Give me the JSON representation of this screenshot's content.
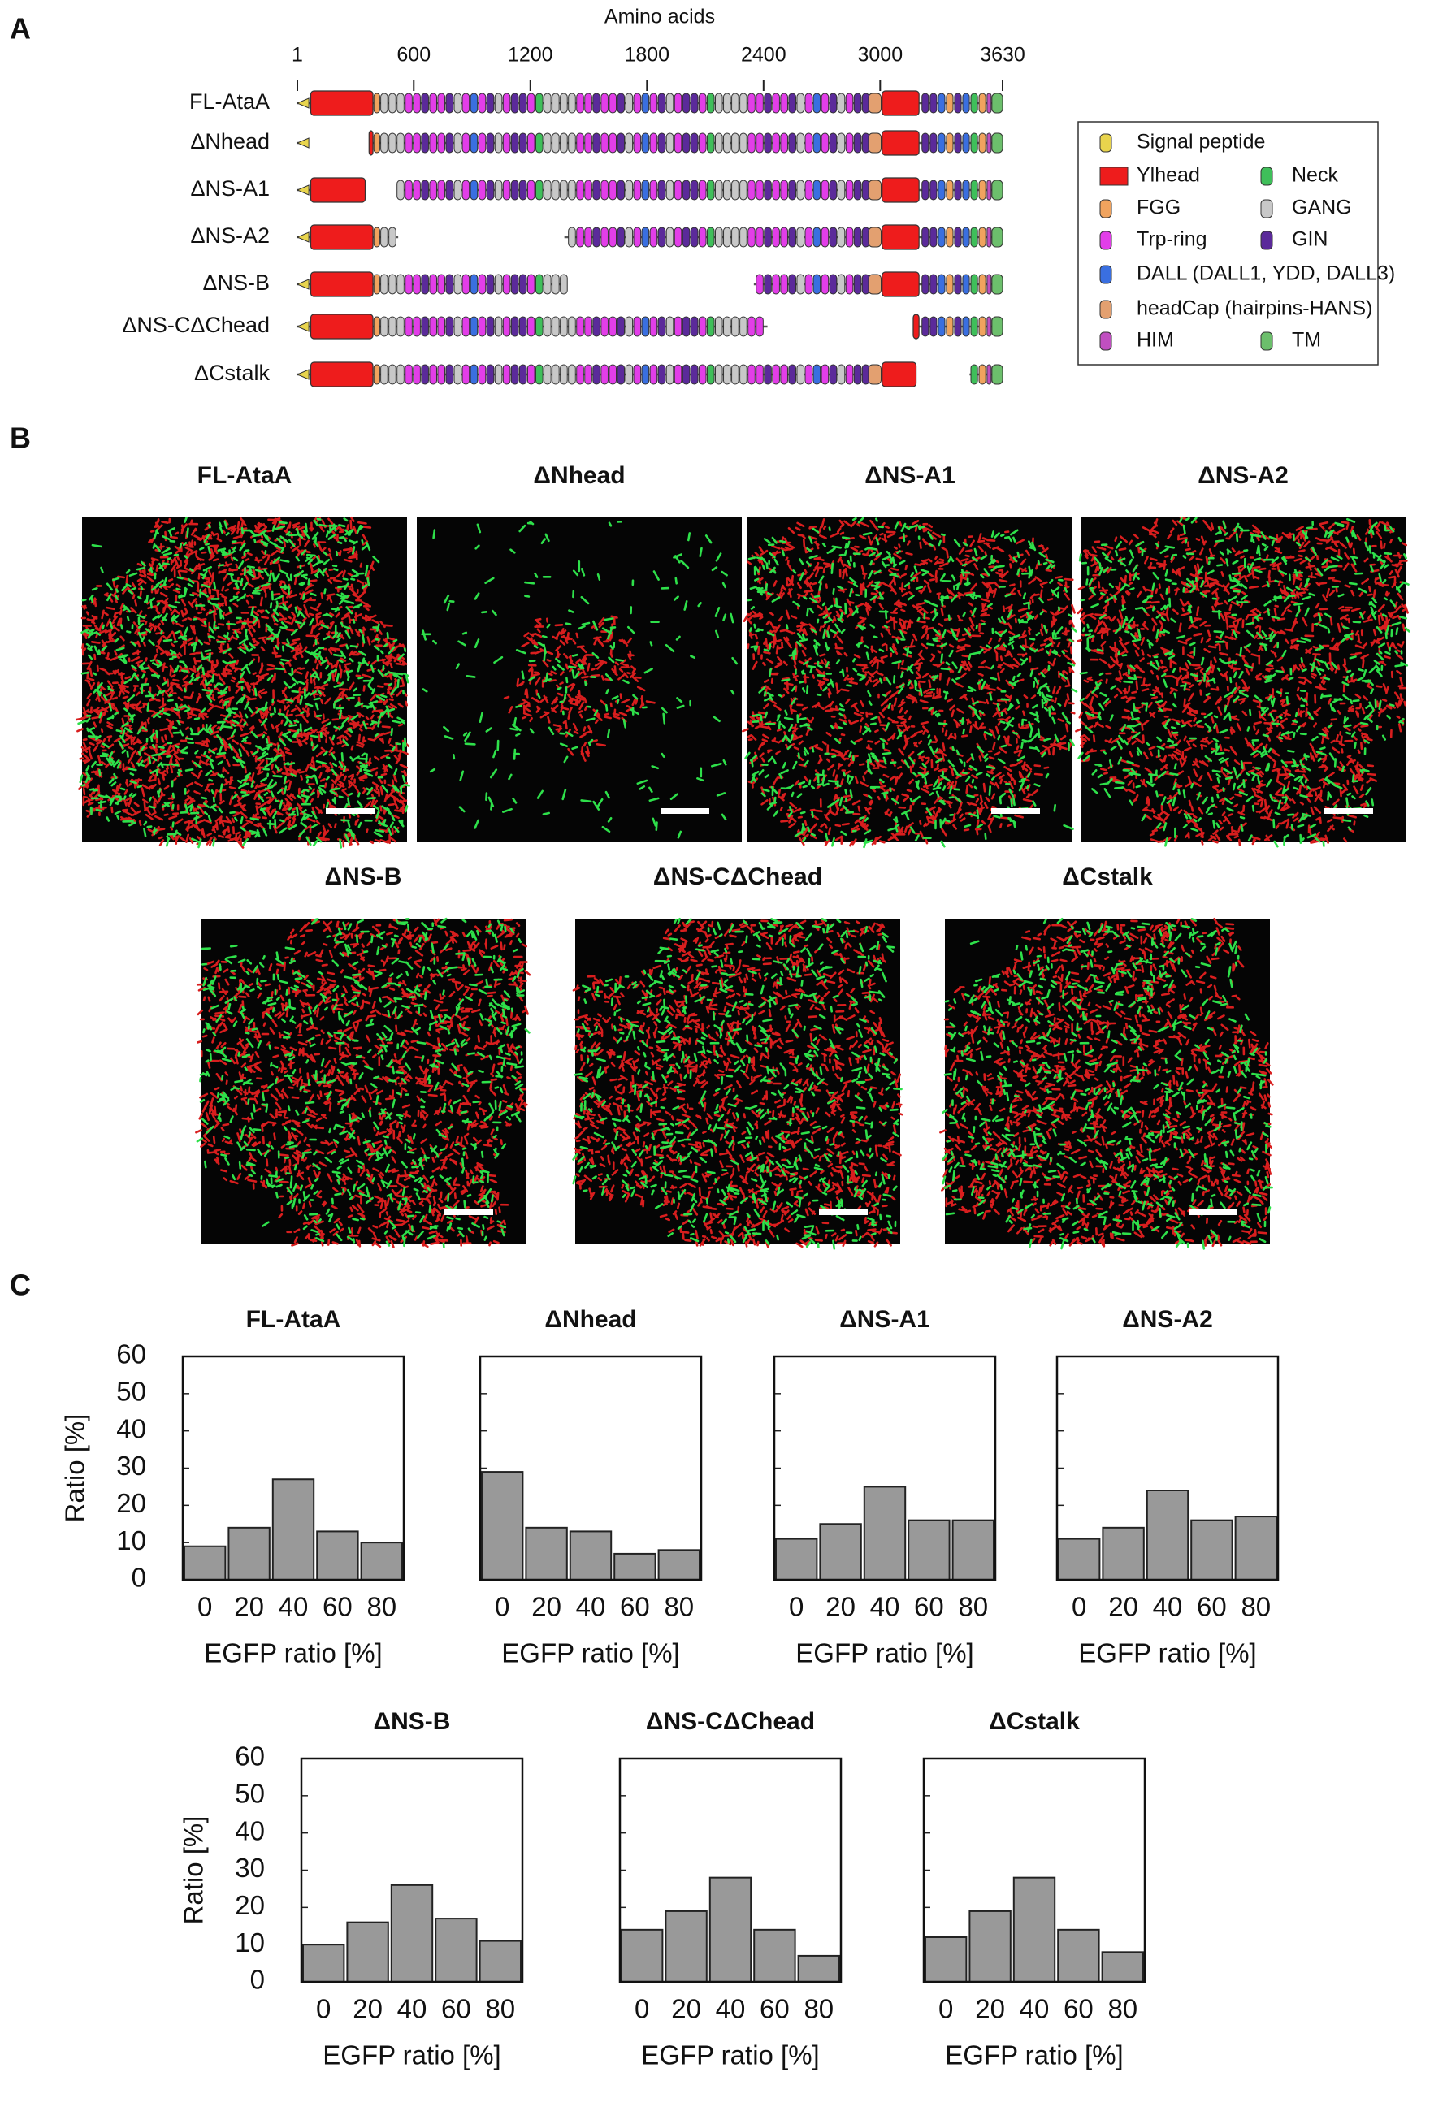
{
  "panel_labels": [
    "A",
    "B",
    "C"
  ],
  "domain_map": {
    "axis_title": "Amino acids",
    "xlim": [
      1,
      3630
    ],
    "xticks": [
      1,
      600,
      1200,
      1800,
      2400,
      3000,
      3630
    ],
    "constructs": [
      {
        "name": "FL-AtaA",
        "segments": [
          [
            1,
            3630
          ]
        ]
      },
      {
        "name": "ΔNhead",
        "segments": [
          [
            1,
            60
          ],
          [
            370,
            3630
          ]
        ]
      },
      {
        "name": "ΔNS-A1",
        "segments": [
          [
            1,
            350
          ],
          [
            520,
            3630
          ]
        ]
      },
      {
        "name": "ΔNS-A2",
        "segments": [
          [
            1,
            520
          ],
          [
            1375,
            3630
          ]
        ]
      },
      {
        "name": "ΔNS-B",
        "segments": [
          [
            1,
            1375
          ],
          [
            2350,
            3630
          ]
        ]
      },
      {
        "name": "ΔNS-CΔChead",
        "segments": [
          [
            1,
            2420
          ],
          [
            3170,
            3630
          ]
        ]
      },
      {
        "name": "ΔCstalk",
        "segments": [
          [
            1,
            3185
          ],
          [
            3460,
            3630
          ]
        ]
      }
    ],
    "legend": [
      {
        "label": "Signal peptide",
        "color": "#e8d44d"
      },
      {
        "label": "Ylhead",
        "color": "#ee1c1c"
      },
      {
        "label": "FGG",
        "color": "#f0a35e"
      },
      {
        "label": "Trp-ring",
        "color": "#e23ee8"
      },
      {
        "label": "DALL (DALL1, YDD, DALL3)",
        "color": "#3a6fe0"
      },
      {
        "label": "headCap (hairpins-HANS)",
        "color": "#e3a070"
      },
      {
        "label": "HIM",
        "color": "#c04fc0"
      },
      {
        "label": "Neck",
        "color": "#3fbf5a"
      },
      {
        "label": "GANG",
        "color": "#c8c8c8"
      },
      {
        "label": "GIN",
        "color": "#5b2a9a"
      },
      {
        "label": "TM",
        "color": "#6cbf6c"
      }
    ]
  },
  "images": [
    {
      "title": "FL-AtaA"
    },
    {
      "title": "ΔNhead"
    },
    {
      "title": "ΔNS-A1"
    },
    {
      "title": "ΔNS-A2"
    },
    {
      "title": "ΔNS-B"
    },
    {
      "title": "ΔNS-CΔChead"
    },
    {
      "title": "ΔCstalk"
    }
  ],
  "chart_data": [
    {
      "type": "bar",
      "title": "FL-AtaA",
      "categories": [
        "0",
        "20",
        "40",
        "60",
        "80"
      ],
      "values": [
        9,
        14,
        27,
        13,
        10
      ],
      "color": "#999999",
      "ylim": [
        0,
        60
      ],
      "yticks": [
        0,
        10,
        20,
        30,
        40,
        50,
        60
      ],
      "xlabel": "EGFP ratio [%]",
      "ylabel": "Ratio [%]"
    },
    {
      "type": "bar",
      "title": "ΔNhead",
      "categories": [
        "0",
        "20",
        "40",
        "60",
        "80"
      ],
      "values": [
        29,
        14,
        13,
        7,
        8
      ],
      "color": "#999999",
      "ylim": [
        0,
        60
      ],
      "yticks": [
        0,
        10,
        20,
        30,
        40,
        50,
        60
      ],
      "xlabel": "EGFP ratio [%]"
    },
    {
      "type": "bar",
      "title": "ΔNS-A1",
      "categories": [
        "0",
        "20",
        "40",
        "60",
        "80"
      ],
      "values": [
        11,
        15,
        25,
        16,
        16
      ],
      "color": "#999999",
      "ylim": [
        0,
        60
      ],
      "yticks": [
        0,
        10,
        20,
        30,
        40,
        50,
        60
      ],
      "xlabel": "EGFP ratio [%]"
    },
    {
      "type": "bar",
      "title": "ΔNS-A2",
      "categories": [
        "0",
        "20",
        "40",
        "60",
        "80"
      ],
      "values": [
        11,
        14,
        24,
        16,
        17
      ],
      "color": "#999999",
      "ylim": [
        0,
        60
      ],
      "yticks": [
        0,
        10,
        20,
        30,
        40,
        50,
        60
      ],
      "xlabel": "EGFP ratio [%]"
    },
    {
      "type": "bar",
      "title": "ΔNS-B",
      "categories": [
        "0",
        "20",
        "40",
        "60",
        "80"
      ],
      "values": [
        10,
        16,
        26,
        17,
        11
      ],
      "color": "#999999",
      "ylim": [
        0,
        60
      ],
      "yticks": [
        0,
        10,
        20,
        30,
        40,
        50,
        60
      ],
      "xlabel": "EGFP ratio [%]",
      "ylabel": "Ratio [%]"
    },
    {
      "type": "bar",
      "title": "ΔNS-CΔChead",
      "categories": [
        "0",
        "20",
        "40",
        "60",
        "80"
      ],
      "values": [
        14,
        19,
        28,
        14,
        7
      ],
      "color": "#999999",
      "ylim": [
        0,
        60
      ],
      "yticks": [
        0,
        10,
        20,
        30,
        40,
        50,
        60
      ],
      "xlabel": "EGFP ratio [%]"
    },
    {
      "type": "bar",
      "title": "ΔCstalk",
      "categories": [
        "0",
        "20",
        "40",
        "60",
        "80"
      ],
      "values": [
        12,
        19,
        28,
        14,
        8
      ],
      "color": "#999999",
      "ylim": [
        0,
        60
      ],
      "yticks": [
        0,
        10,
        20,
        30,
        40,
        50,
        60
      ],
      "xlabel": "EGFP ratio [%]"
    }
  ]
}
